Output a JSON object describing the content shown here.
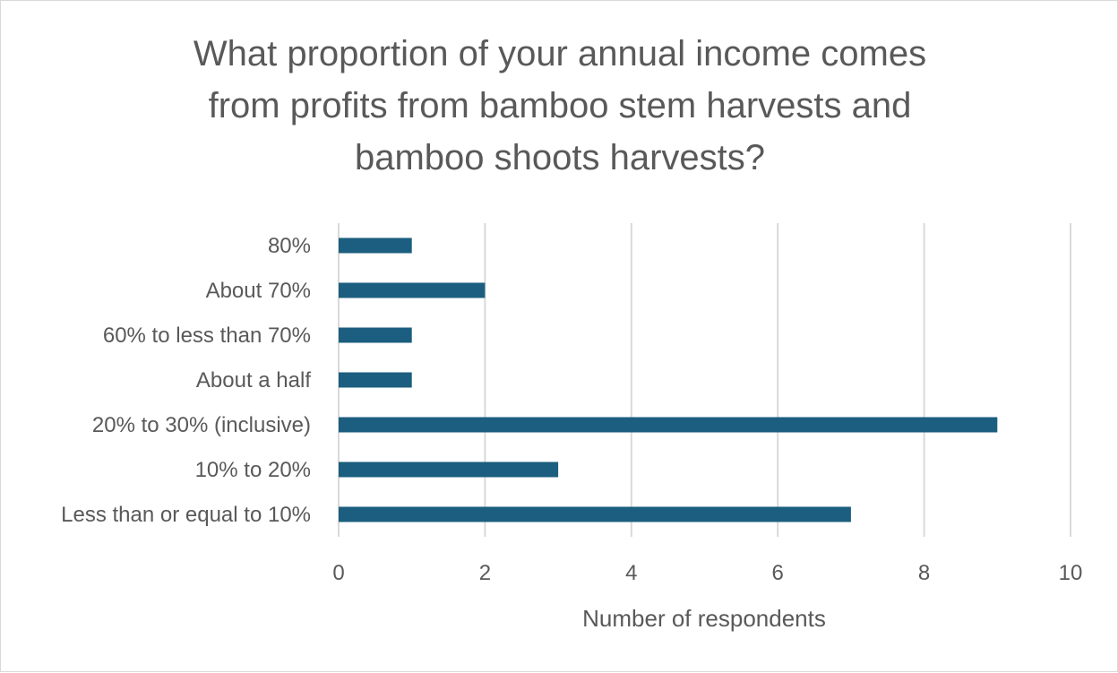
{
  "chart_data": {
    "type": "bar",
    "orientation": "horizontal",
    "title_lines": [
      "What proportion of your annual income comes",
      "from profits from bamboo stem harvests and",
      "bamboo shoots harvests?"
    ],
    "xlabel": "Number of respondents",
    "ylabel": "",
    "categories": [
      "80%",
      "About 70%",
      "60% to less than 70%",
      "About a half",
      "20% to 30% (inclusive)",
      "10% to 20%",
      "Less than or equal to 10%"
    ],
    "values": [
      1,
      2,
      1,
      1,
      9,
      3,
      7
    ],
    "xlim": [
      0,
      10
    ],
    "xticks": [
      0,
      2,
      4,
      6,
      8,
      10
    ],
    "grid": "vertical",
    "legend": "none",
    "bar_color": "#1b5e7f",
    "grid_color": "#d9d9d9",
    "text_color": "#595959"
  }
}
